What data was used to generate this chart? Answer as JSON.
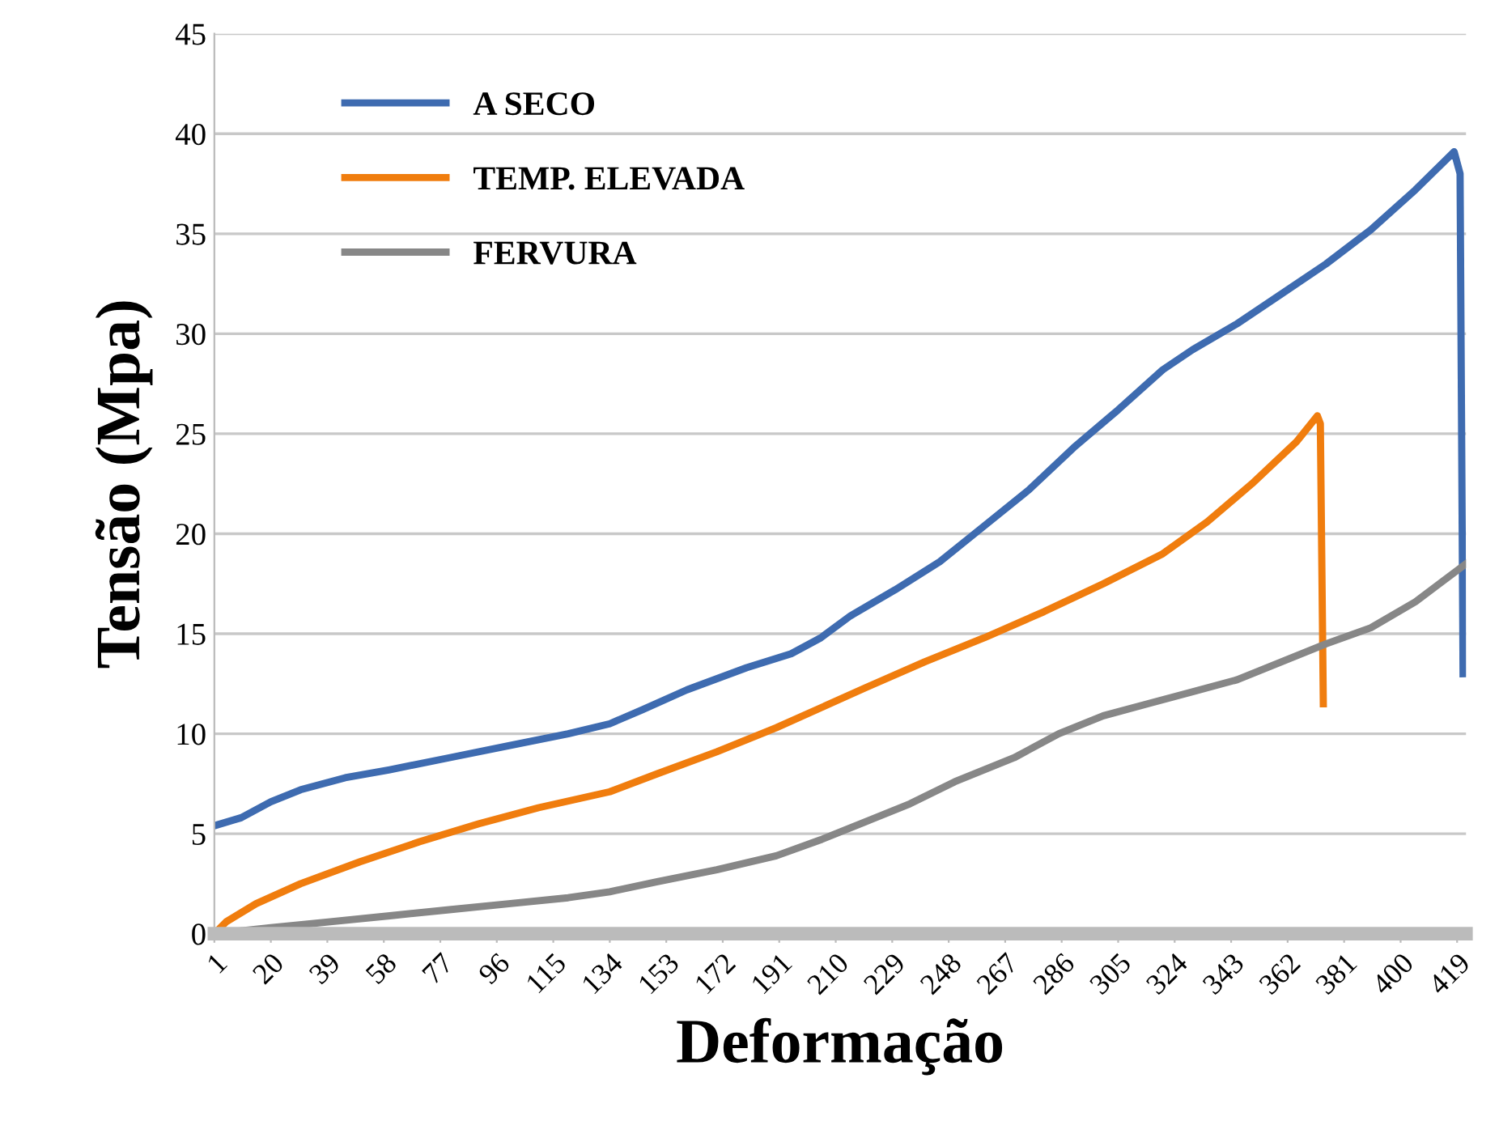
{
  "chart_data": {
    "type": "line",
    "xlabel": "Deformação",
    "ylabel": "Tensão (Mpa)",
    "xlim": [
      1,
      422
    ],
    "xticks": [
      1,
      20,
      39,
      58,
      77,
      96,
      115,
      134,
      153,
      172,
      191,
      210,
      229,
      248,
      267,
      286,
      305,
      324,
      343,
      362,
      381,
      400,
      419
    ],
    "ylim": [
      0,
      45
    ],
    "yticks": [
      0,
      5,
      10,
      15,
      20,
      25,
      30,
      35,
      40,
      45
    ],
    "grid": "y",
    "legend": "top left",
    "marker": "none",
    "line_style": "solid",
    "series": [
      {
        "name": "A SECO",
        "color": "#3e6bb0",
        "x": [
          1,
          10,
          20,
          30,
          45,
          60,
          80,
          100,
          120,
          134,
          145,
          160,
          180,
          195,
          205,
          215,
          230,
          245,
          260,
          275,
          290,
          305,
          320,
          330,
          345,
          360,
          375,
          390,
          405,
          418,
          420,
          421
        ],
        "values": [
          5.4,
          5.8,
          6.6,
          7.2,
          7.8,
          8.2,
          8.8,
          9.4,
          10,
          10.5,
          11.2,
          12.2,
          13.3,
          14,
          14.8,
          15.9,
          17.2,
          18.6,
          20.4,
          22.2,
          24.3,
          26.2,
          28.2,
          29.2,
          30.5,
          32,
          33.5,
          35.2,
          37.2,
          39.1,
          38,
          13
        ]
      },
      {
        "name": "TEMP. ELEVADA",
        "color": "#f07d0e",
        "x": [
          1,
          5,
          15,
          30,
          50,
          70,
          90,
          110,
          134,
          150,
          170,
          190,
          205,
          220,
          240,
          260,
          280,
          300,
          320,
          335,
          350,
          365,
          372,
          373,
          374
        ],
        "values": [
          0,
          0.6,
          1.5,
          2.5,
          3.6,
          4.6,
          5.5,
          6.3,
          7.1,
          8,
          9.1,
          10.3,
          11.3,
          12.3,
          13.6,
          14.8,
          16.1,
          17.5,
          19,
          20.6,
          22.5,
          24.6,
          25.9,
          25.5,
          11.5
        ]
      },
      {
        "name": "FERVURA",
        "color": "#878787",
        "x": [
          1,
          20,
          40,
          60,
          80,
          100,
          120,
          134,
          150,
          170,
          190,
          205,
          220,
          235,
          250,
          270,
          285,
          300,
          315,
          330,
          345,
          360,
          375,
          390,
          405,
          422
        ],
        "values": [
          0,
          0.3,
          0.6,
          0.9,
          1.2,
          1.5,
          1.8,
          2.1,
          2.6,
          3.2,
          3.9,
          4.7,
          5.6,
          6.5,
          7.6,
          8.8,
          10,
          10.9,
          11.5,
          12.1,
          12.7,
          13.6,
          14.5,
          15.3,
          16.6,
          18.5
        ]
      }
    ]
  }
}
